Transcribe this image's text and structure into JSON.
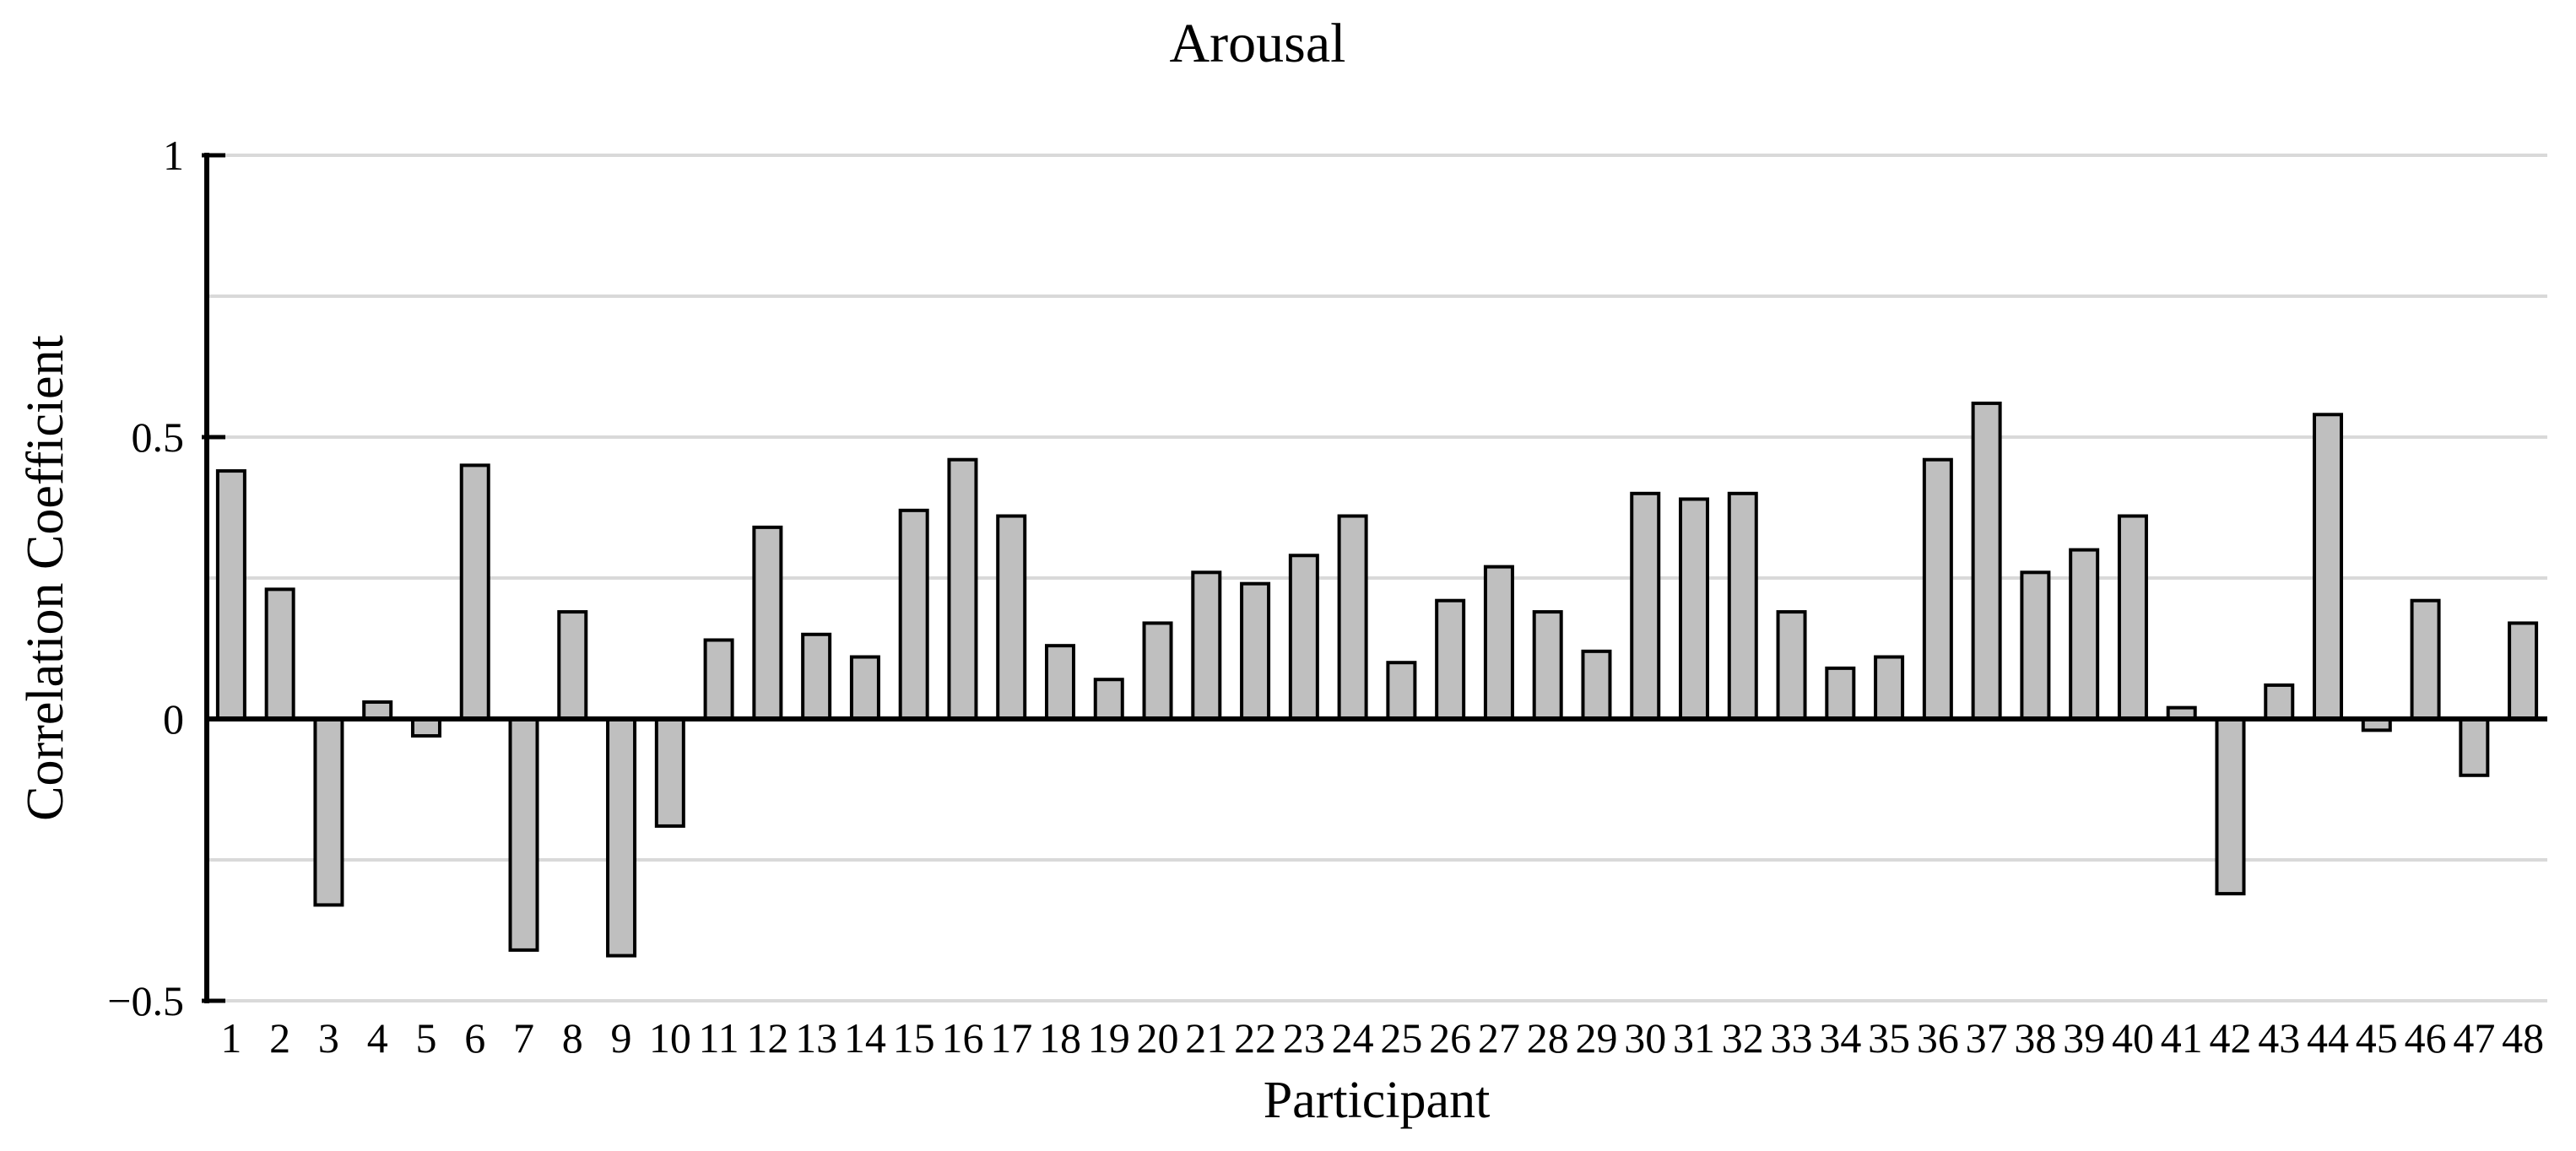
{
  "chart_data": {
    "type": "bar",
    "title": "Arousal",
    "xlabel": "Participant",
    "ylabel": "Correlation Coefficient",
    "categories": [
      "1",
      "2",
      "3",
      "4",
      "5",
      "6",
      "7",
      "8",
      "9",
      "10",
      "11",
      "12",
      "13",
      "14",
      "15",
      "16",
      "17",
      "18",
      "19",
      "20",
      "21",
      "22",
      "23",
      "24",
      "25",
      "26",
      "27",
      "28",
      "29",
      "30",
      "31",
      "32",
      "33",
      "34",
      "35",
      "36",
      "37",
      "38",
      "39",
      "40",
      "41",
      "42",
      "43",
      "44",
      "45",
      "46",
      "47",
      "48"
    ],
    "values": [
      0.44,
      0.23,
      -0.33,
      0.03,
      -0.03,
      0.45,
      -0.41,
      0.19,
      -0.42,
      -0.19,
      0.14,
      0.34,
      0.15,
      0.11,
      0.37,
      0.46,
      0.36,
      0.13,
      0.07,
      0.17,
      0.26,
      0.24,
      0.29,
      0.36,
      0.1,
      0.21,
      0.27,
      0.19,
      0.12,
      0.4,
      0.39,
      0.4,
      0.19,
      0.09,
      0.11,
      0.46,
      0.56,
      0.26,
      0.3,
      0.36,
      0.02,
      -0.31,
      0.06,
      0.54,
      -0.02,
      0.21,
      -0.1,
      0.17
    ],
    "ylim": [
      -0.5,
      1
    ],
    "ytick_values": [
      1,
      0.5,
      0,
      -0.5
    ],
    "ytick_labels": [
      "1",
      "0.5",
      "0",
      "−0.5"
    ],
    "y_gridlines": [
      1,
      0.75,
      0.5,
      0.25,
      -0.25,
      -0.5
    ],
    "grid": true,
    "legend": "none",
    "colors": {
      "bar_fill": "#bfbfbf",
      "bar_stroke": "#000000",
      "gridline": "#d9d9d9",
      "axis": "#000000",
      "background": "#ffffff"
    }
  }
}
